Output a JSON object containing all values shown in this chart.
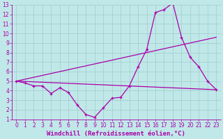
{
  "xlabel": "Windchill (Refroidissement éolien,°C)",
  "background_color": "#c0e8e8",
  "grid_color": "#a0cccc",
  "line_color": "#aa00aa",
  "xlim": [
    -0.5,
    23.5
  ],
  "ylim": [
    1,
    13
  ],
  "xticks": [
    0,
    1,
    2,
    3,
    4,
    5,
    6,
    7,
    8,
    9,
    10,
    11,
    12,
    13,
    14,
    15,
    16,
    17,
    18,
    19,
    20,
    21,
    22,
    23
  ],
  "yticks": [
    1,
    2,
    3,
    4,
    5,
    6,
    7,
    8,
    9,
    10,
    11,
    12,
    13
  ],
  "line1_x": [
    0,
    1,
    2,
    3,
    4,
    5,
    6,
    7,
    8,
    9,
    10,
    11,
    12,
    13,
    14,
    15,
    16,
    17,
    18,
    19,
    20,
    21,
    22,
    23
  ],
  "line1_y": [
    5.0,
    4.8,
    4.5,
    4.5,
    3.7,
    4.3,
    3.8,
    2.5,
    1.5,
    1.2,
    2.2,
    3.2,
    3.3,
    4.5,
    6.5,
    8.3,
    12.2,
    12.5,
    13.2,
    9.6,
    7.5,
    6.5,
    5.0,
    4.1
  ],
  "line2_x": [
    0,
    23
  ],
  "line2_y": [
    5.0,
    4.1
  ],
  "line3_x": [
    0,
    23
  ],
  "line3_y": [
    5.0,
    9.6
  ],
  "marker": "+",
  "markersize": 3,
  "linewidth": 0.9,
  "tick_fontsize": 5.5,
  "xlabel_fontsize": 6.5
}
